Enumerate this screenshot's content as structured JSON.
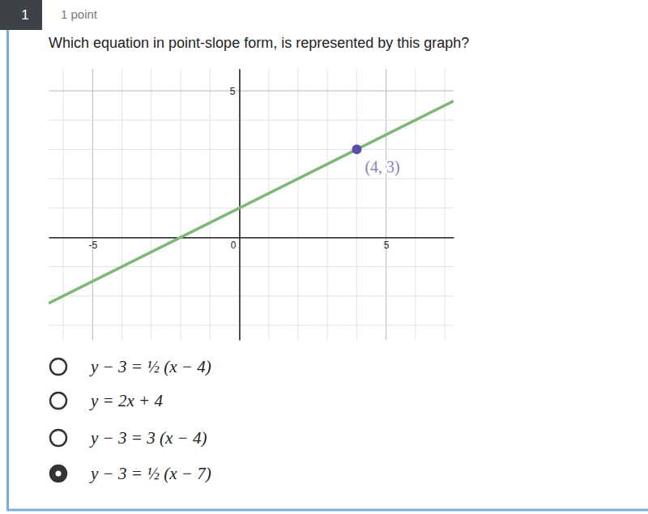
{
  "header": {
    "number": "1",
    "points": "1 point"
  },
  "question": "Which equation in point-slope form, is represented by this graph?",
  "chart_data": {
    "type": "line",
    "xlim": [
      -6.5,
      7.3
    ],
    "ylim": [
      -3.5,
      5.75
    ],
    "xticks": [
      -5,
      0,
      5
    ],
    "yticks": [
      5
    ],
    "grid": true,
    "x_gridlines": [
      -6,
      -5,
      -4,
      -3,
      -2,
      -1,
      0,
      1,
      2,
      3,
      4,
      5,
      6,
      7
    ],
    "y_gridlines": [
      -3,
      -2,
      -1,
      0,
      1,
      2,
      3,
      4,
      5
    ],
    "series": [
      {
        "type": "line",
        "color": "#7cb977",
        "x": [
          -6.5,
          7.3
        ],
        "values": [
          -2.25,
          4.65
        ]
      },
      {
        "type": "scatter",
        "color": "#5b4ca8",
        "marker": "circle",
        "x": [
          4
        ],
        "values": [
          3
        ]
      }
    ],
    "annotations": [
      {
        "text": "(4, 3)",
        "x": 4,
        "y": 3,
        "color": "#8a80bd"
      }
    ]
  },
  "options": [
    {
      "text": "y − 3 = ½ (x − 4)",
      "selected": false
    },
    {
      "text": "y = 2x + 4",
      "selected": false
    },
    {
      "text": "y − 3 = 3 (x − 4)",
      "selected": false
    },
    {
      "text": "y − 3 = ½ (x − 7)",
      "selected": true
    }
  ]
}
